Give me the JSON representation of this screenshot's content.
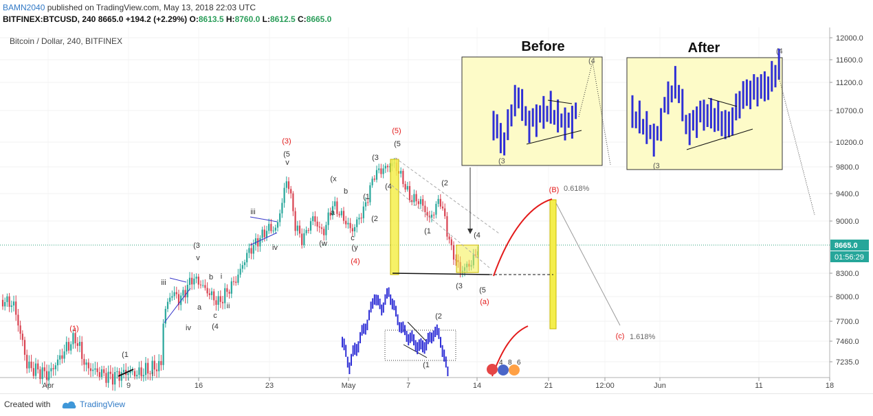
{
  "header": {
    "user": "BAMN2040",
    "published": "published on TradingView.com, May 13, 2018 22:03 UTC",
    "symbol": "BITFINEX:BTCUSD, 240",
    "price": "8665.0",
    "change": "+194.2 (+2.29%)",
    "o_label": "O:",
    "o_value": "8613.5",
    "h_label": "H:",
    "h_value": "8760.0",
    "l_label": "L:",
    "l_value": "8612.5",
    "c_label": "C:",
    "c_value": "8665.0"
  },
  "footer": {
    "created_with": "Created with",
    "brand": "TradingView"
  },
  "chart_data": {
    "type": "candlestick",
    "title": "Bitcoin / Dollar, 240, BITFINEX",
    "y_ticks": [
      12000,
      11600,
      11200,
      10700,
      10200,
      9800,
      9400,
      9000,
      8665,
      8300,
      8000,
      7700,
      7460,
      7235
    ],
    "y_tick_labels": [
      "12000.0",
      "11600.0",
      "11200.0",
      "10700.0",
      "10200.0",
      "9800.0",
      "9400.0",
      "9000.0",
      "8665.0",
      "8300.0",
      "8000.0",
      "7700.0",
      "7460.0",
      "7235.0"
    ],
    "x_tick_labels": [
      "Apr",
      "9",
      "16",
      "23",
      "May",
      "7",
      "14",
      "21",
      "12:00",
      "Jun",
      "11",
      "18"
    ],
    "last_price": "8665.0",
    "countdown": "01:56:29",
    "wave_labels": [
      {
        "t": "(1)",
        "c": "red"
      },
      {
        "t": "(1",
        "c": "dark"
      },
      {
        "t": "i",
        "c": "dark"
      },
      {
        "t": "iii",
        "c": "dark"
      },
      {
        "t": "iv",
        "c": "dark"
      },
      {
        "t": "a",
        "c": "dark"
      },
      {
        "t": "b",
        "c": "dark"
      },
      {
        "t": "i",
        "c": "dark"
      },
      {
        "t": "ii",
        "c": "dark"
      },
      {
        "t": "c",
        "c": "dark"
      },
      {
        "t": "(4",
        "c": "dark"
      },
      {
        "t": "(3",
        "c": "dark"
      },
      {
        "t": "v",
        "c": "dark"
      },
      {
        "t": "iii",
        "c": "dark"
      },
      {
        "t": "iv",
        "c": "dark"
      },
      {
        "t": "(3)",
        "c": "red"
      },
      {
        "t": "(5",
        "c": "dark"
      },
      {
        "t": "v",
        "c": "dark"
      },
      {
        "t": "(w",
        "c": "dark"
      },
      {
        "t": "(x",
        "c": "dark"
      },
      {
        "t": "b",
        "c": "dark"
      },
      {
        "t": "a",
        "c": "dark"
      },
      {
        "t": "c",
        "c": "dark"
      },
      {
        "t": "(y",
        "c": "dark"
      },
      {
        "t": "(4)",
        "c": "red"
      },
      {
        "t": "(1",
        "c": "dark"
      },
      {
        "t": "(2",
        "c": "dark"
      },
      {
        "t": "(3",
        "c": "dark"
      },
      {
        "t": "(4",
        "c": "dark"
      },
      {
        "t": "(5)",
        "c": "red"
      },
      {
        "t": "(5",
        "c": "dark"
      },
      {
        "t": "(2",
        "c": "dark"
      },
      {
        "t": "(1",
        "c": "dark"
      },
      {
        "t": "(4",
        "c": "dark"
      },
      {
        "t": "(3",
        "c": "dark"
      },
      {
        "t": "(5",
        "c": "dark"
      },
      {
        "t": "(a)",
        "c": "red"
      },
      {
        "t": "(B)",
        "c": "red"
      },
      {
        "t": "(c)",
        "c": "red"
      },
      {
        "t": "(2",
        "c": "dark"
      },
      {
        "t": "(1",
        "c": "dark"
      }
    ],
    "fib_labels": [
      "0.618%",
      "1.618%"
    ],
    "inset_before_title": "Before",
    "inset_after_title": "After",
    "inset_before_labels": [
      "(3",
      "(4"
    ],
    "inset_after_labels": [
      "(3",
      "(4"
    ],
    "small_digits": [
      "4",
      "8",
      "6"
    ]
  },
  "colors": {
    "up": "#26a69a",
    "down": "#d84250",
    "blue": "#2f2fd6",
    "yellow": "#f3ef5a",
    "red": "#e31b1b"
  }
}
